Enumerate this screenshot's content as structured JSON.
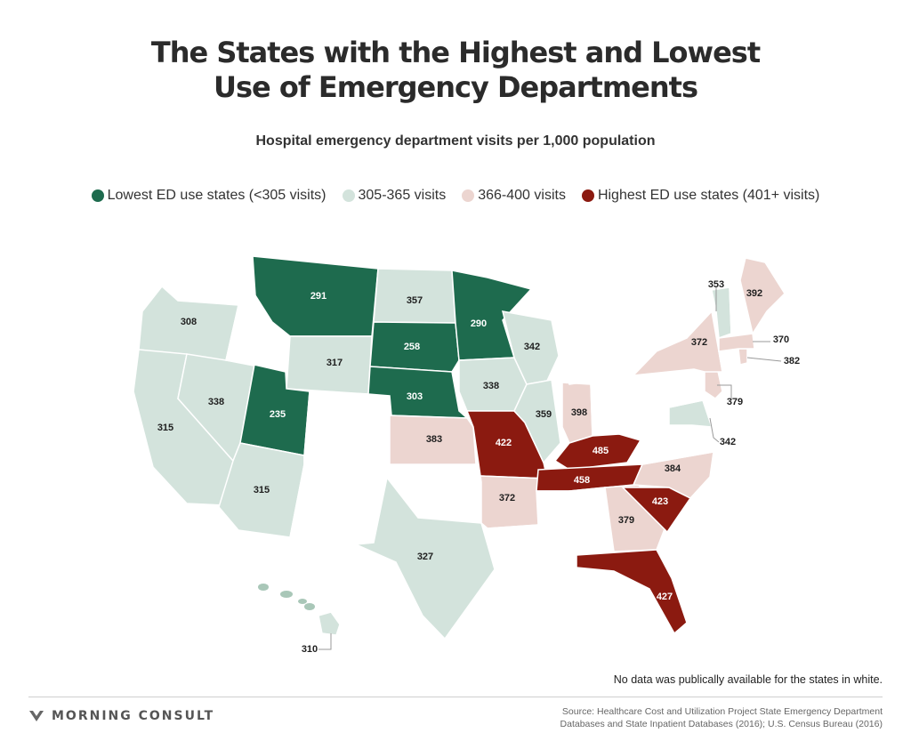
{
  "title": {
    "line1": "The States with the Highest and Lowest",
    "line2": "Use of Emergency Departments"
  },
  "subtitle": "Hospital emergency department visits per 1,000 population",
  "legend": [
    {
      "label": "Lowest ED use states (<305 visits)",
      "color": "#1e6b4e"
    },
    {
      "label": "305-365 visits",
      "color": "#d3e3dc"
    },
    {
      "label": "366-400 visits",
      "color": "#ecd5d0"
    },
    {
      "label": "Highest ED use states (401+ visits)",
      "color": "#8b1a10"
    }
  ],
  "colors": {
    "low": "#1e6b4e",
    "mid_low": "#d3e3dc",
    "mid_high": "#ecd5d0",
    "high": "#8b1a10",
    "no_data": "#ffffff"
  },
  "states": [
    {
      "state": "WA",
      "value": null
    },
    {
      "state": "OR",
      "value": 308
    },
    {
      "state": "CA",
      "value": 315
    },
    {
      "state": "NV",
      "value": 338
    },
    {
      "state": "ID",
      "value": null
    },
    {
      "state": "MT",
      "value": 291
    },
    {
      "state": "WY",
      "value": 317
    },
    {
      "state": "UT",
      "value": 235
    },
    {
      "state": "AZ",
      "value": 315
    },
    {
      "state": "CO",
      "value": null
    },
    {
      "state": "NM",
      "value": null
    },
    {
      "state": "ND",
      "value": 357
    },
    {
      "state": "SD",
      "value": 258
    },
    {
      "state": "NE",
      "value": 303
    },
    {
      "state": "KS",
      "value": 383
    },
    {
      "state": "OK",
      "value": null
    },
    {
      "state": "TX",
      "value": 327
    },
    {
      "state": "MN",
      "value": 290
    },
    {
      "state": "IA",
      "value": 338
    },
    {
      "state": "MO",
      "value": 422
    },
    {
      "state": "AR",
      "value": 372
    },
    {
      "state": "LA",
      "value": null
    },
    {
      "state": "WI",
      "value": 342
    },
    {
      "state": "IL",
      "value": 359
    },
    {
      "state": "IN",
      "value": 398
    },
    {
      "state": "MI",
      "value": null
    },
    {
      "state": "OH",
      "value": null
    },
    {
      "state": "KY",
      "value": 485
    },
    {
      "state": "TN",
      "value": 458
    },
    {
      "state": "MS",
      "value": null
    },
    {
      "state": "AL",
      "value": null
    },
    {
      "state": "GA",
      "value": 379
    },
    {
      "state": "FL",
      "value": 427
    },
    {
      "state": "SC",
      "value": 423
    },
    {
      "state": "NC",
      "value": 384
    },
    {
      "state": "VA",
      "value": null
    },
    {
      "state": "WV",
      "value": null
    },
    {
      "state": "MD",
      "value": 342
    },
    {
      "state": "DE",
      "value": null
    },
    {
      "state": "PA",
      "value": null
    },
    {
      "state": "NJ",
      "value": 379
    },
    {
      "state": "NY",
      "value": 372
    },
    {
      "state": "CT",
      "value": null
    },
    {
      "state": "RI",
      "value": 382
    },
    {
      "state": "MA",
      "value": 370
    },
    {
      "state": "VT",
      "value": 353
    },
    {
      "state": "NH",
      "value": null
    },
    {
      "state": "ME",
      "value": 392
    },
    {
      "state": "AK",
      "value": null
    },
    {
      "state": "HI",
      "value": 310
    }
  ],
  "note": "No data was publically available for the states in white.",
  "brand": "MORNING CONSULT",
  "source": {
    "line1": "Source: Healthcare Cost and Utilization Project State Emergency Department",
    "line2": "Databases and State Inpatient Databases (2016); U.S. Census Bureau (2016)"
  }
}
